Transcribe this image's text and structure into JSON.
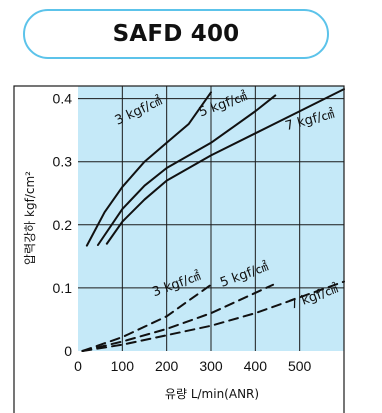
{
  "title": "SAFD 400",
  "colors": {
    "plot_background": "#c5e9f8",
    "title_border": "#5cc3ea",
    "grid": "#1a1a1a",
    "line": "#111111"
  },
  "chart_data": {
    "type": "line",
    "title": "SAFD 400",
    "xlabel": "유량 L/min(ANR)",
    "ylabel": "압력강하 kgf/cm²",
    "xlim": [
      0,
      600
    ],
    "ylim": [
      0,
      0.42
    ],
    "x_ticks": [
      0,
      100,
      200,
      300,
      400,
      500
    ],
    "y_ticks": [
      0,
      0.1,
      0.2,
      0.3,
      0.4
    ],
    "y_tick_labels": [
      "0",
      "0.1",
      "0.2",
      "0.3",
      "0.4"
    ],
    "grid": true,
    "series": [
      {
        "name": "3 kgf/cm²",
        "style": "solid",
        "x": [
          20,
          60,
          100,
          150,
          200,
          250,
          300
        ],
        "y": [
          0.167,
          0.22,
          0.26,
          0.3,
          0.33,
          0.36,
          0.41
        ]
      },
      {
        "name": "5 kgf/cm²",
        "style": "solid",
        "x": [
          45,
          100,
          150,
          200,
          250,
          300,
          350,
          400,
          445
        ],
        "y": [
          0.168,
          0.225,
          0.262,
          0.29,
          0.31,
          0.33,
          0.355,
          0.38,
          0.405
        ]
      },
      {
        "name": "7 kgf/cm²",
        "style": "solid",
        "x": [
          65,
          100,
          150,
          200,
          300,
          400,
          500,
          600
        ],
        "y": [
          0.17,
          0.205,
          0.24,
          0.27,
          0.31,
          0.345,
          0.38,
          0.415
        ]
      },
      {
        "name": "3 kgf/cm²",
        "style": "dashed",
        "x": [
          10,
          100,
          200,
          300
        ],
        "y": [
          0.0,
          0.022,
          0.055,
          0.105
        ]
      },
      {
        "name": "5 kgf/cm²",
        "style": "dashed",
        "x": [
          10,
          100,
          200,
          300,
          440
        ],
        "y": [
          0.0,
          0.015,
          0.035,
          0.06,
          0.105
        ]
      },
      {
        "name": "7 kgf/cm²",
        "style": "dashed",
        "x": [
          10,
          100,
          200,
          300,
          400,
          500,
          600
        ],
        "y": [
          0.0,
          0.01,
          0.025,
          0.04,
          0.06,
          0.085,
          0.11
        ]
      }
    ],
    "curve_labels": [
      {
        "text": "3 kgf/㎠",
        "x": 140,
        "y": 0.375,
        "angle": -25
      },
      {
        "text": "5 kgf/㎠",
        "x": 330,
        "y": 0.385,
        "angle": -20
      },
      {
        "text": "7 kgf/㎠",
        "x": 525,
        "y": 0.36,
        "angle": -15
      },
      {
        "text": "3 kgf/㎠",
        "x": 225,
        "y": 0.1,
        "angle": -20
      },
      {
        "text": "5 kgf/㎠",
        "x": 378,
        "y": 0.115,
        "angle": -20
      },
      {
        "text": "7 kgf/㎠",
        "x": 535,
        "y": 0.08,
        "angle": -20
      }
    ]
  }
}
